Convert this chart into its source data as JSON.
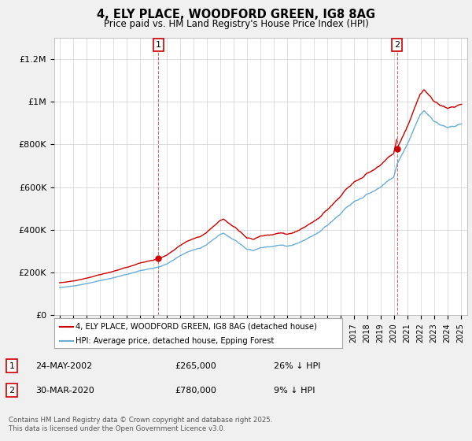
{
  "title": "4, ELY PLACE, WOODFORD GREEN, IG8 8AG",
  "subtitle": "Price paid vs. HM Land Registry's House Price Index (HPI)",
  "ylim": [
    0,
    1300000
  ],
  "yticks": [
    0,
    200000,
    400000,
    600000,
    800000,
    1000000,
    1200000
  ],
  "ytick_labels": [
    "£0",
    "£200K",
    "£400K",
    "£600K",
    "£800K",
    "£1M",
    "£1.2M"
  ],
  "hpi_color": "#6aaed6",
  "hpi_fill_color": "#daeaf5",
  "price_color": "#cc0000",
  "t1_year_float": 2002.39,
  "t1_price": 265000,
  "t2_year_float": 2020.25,
  "t2_price": 780000,
  "legend_label_price": "4, ELY PLACE, WOODFORD GREEN, IG8 8AG (detached house)",
  "legend_label_hpi": "HPI: Average price, detached house, Epping Forest",
  "ann1_date": "24-MAY-2002",
  "ann1_price": "£265,000",
  "ann1_hpi": "26% ↓ HPI",
  "ann2_date": "30-MAR-2020",
  "ann2_price": "£780,000",
  "ann2_hpi": "9% ↓ HPI",
  "footnote": "Contains HM Land Registry data © Crown copyright and database right 2025.\nThis data is licensed under the Open Government Licence v3.0.",
  "bg_color": "#f0f0f0",
  "plot_bg": "#ffffff",
  "xtick_start": 1995,
  "xtick_end": 2025
}
